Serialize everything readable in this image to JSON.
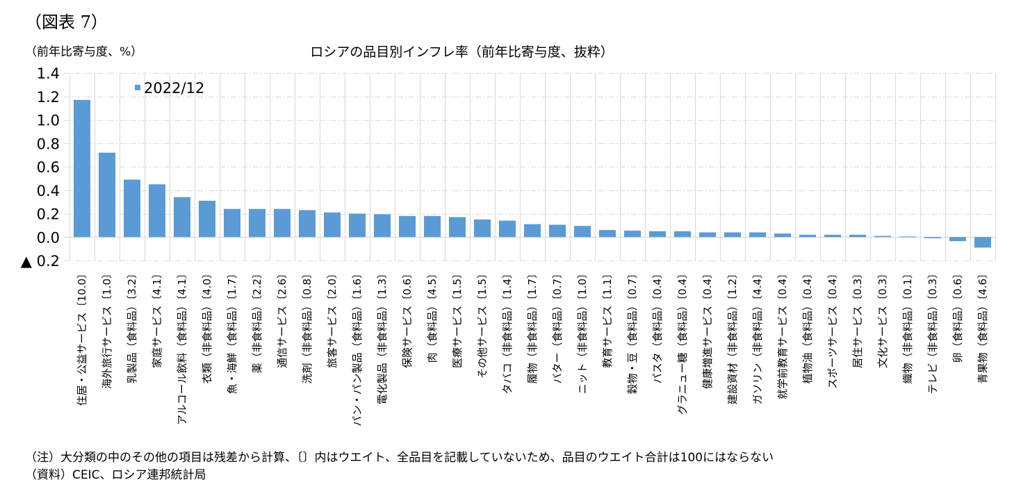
{
  "figure_label": "（図表 7）",
  "unit_label": "（前年比寄与度、%）",
  "notes": {
    "note": "（注）大分類の中のその他の項目は残差から計算、〔〕内はウエイト、全品目を記載していないため、品目のウエイト合計は100にはならない",
    "source": "（資料）CEIC、ロシア連邦統計局"
  },
  "chart_data": {
    "type": "bar",
    "title": "ロシアの品目別インフレ率（前年比寄与度、抜粋）",
    "xlabel": "",
    "ylabel": "（前年比寄与度、%）",
    "ylim": [
      -0.2,
      1.4
    ],
    "yticks": [
      1.4,
      1.2,
      1.0,
      0.8,
      0.6,
      0.4,
      0.2,
      0.0,
      -0.2
    ],
    "ytick_labels": [
      "1.4",
      "1.2",
      "1.0",
      "0.8",
      "0.6",
      "0.4",
      "0.2",
      "0.0",
      "▲ 0.2"
    ],
    "grid": true,
    "legend_position": "top-left",
    "bar_color": "#5B9BD5",
    "categories": [
      "住居・公益サービス〔10.0〕",
      "海外旅行サービス〔1.0〕",
      "乳製品（食料品）〔3.2〕",
      "家庭サービス〔4.1〕",
      "アルコール飲料（食料品）〔4.1〕",
      "衣類（非食料品）〔4.0〕",
      "魚・海鮮（食料品）〔1.7〕",
      "薬（非食料品）〔2.2〕",
      "通信サービス〔2.6〕",
      "洗剤（非食料品）〔0.8〕",
      "旅客サービス〔2.0〕",
      "パン・パン製品（食料品）〔1.6〕",
      "電化製品（非食料品）〔1.3〕",
      "保険サービス〔0.6〕",
      "肉（食料品）〔4.5〕",
      "医療サービス〔1.5〕",
      "その他サービス〔1.5〕",
      "タバコ（非食料品）〔1.4〕",
      "履物（非食料品）〔1.7〕",
      "バター（食料品）〔0.7〕",
      "ニット（非食料品）〔1.0〕",
      "教育サービス〔1.1〕",
      "穀物・豆（食料品）〔0.7〕",
      "パスタ（食料品）〔0.4〕",
      "グラニュー糖（食料品）〔0.4〕",
      "健康増進サービス〔0.4〕",
      "建設資材（非食料品）〔1.2〕",
      "ガソリン（非食料品）〔4.4〕",
      "就学前教育サービス〔0.4〕",
      "植物油（食料品）〔0.4〕",
      "スポーツサービス〔0.4〕",
      "居住サービス〔0.3〕",
      "文化サービス〔0.3〕",
      "織物（非食料品）〔0.1〕",
      "テレビ（非食料品）〔0.3〕",
      "卵（食料品）〔0.6〕",
      "青果物（食料品）〔4.6〕"
    ],
    "series": [
      {
        "name": "2022/12",
        "values": [
          1.17,
          0.72,
          0.49,
          0.45,
          0.34,
          0.31,
          0.24,
          0.24,
          0.24,
          0.23,
          0.21,
          0.2,
          0.195,
          0.18,
          0.18,
          0.17,
          0.15,
          0.14,
          0.11,
          0.105,
          0.095,
          0.06,
          0.055,
          0.05,
          0.05,
          0.04,
          0.04,
          0.04,
          0.03,
          0.02,
          0.02,
          0.02,
          0.01,
          0.005,
          -0.01,
          -0.035,
          -0.09
        ]
      }
    ]
  }
}
